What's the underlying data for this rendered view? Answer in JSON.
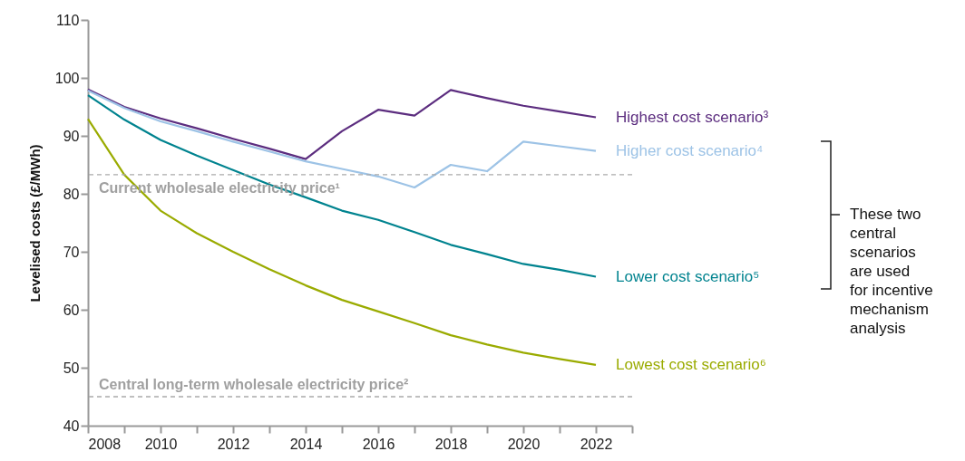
{
  "chart_data": {
    "type": "line",
    "ylabel": "Levelised costs (£/MWh)",
    "x": [
      2008,
      2009,
      2010,
      2011,
      2012,
      2013,
      2014,
      2015,
      2016,
      2017,
      2018,
      2019,
      2020,
      2021,
      2022
    ],
    "series": [
      {
        "name": "Highest cost scenario³",
        "color": "#5c2d7f",
        "values": [
          98,
          95,
          93,
          91.3,
          89.5,
          87.8,
          86,
          90.8,
          94.5,
          93.5,
          97.9,
          96.5,
          95.2,
          94.2,
          93.2
        ]
      },
      {
        "name": "Higher cost scenario⁴",
        "color": "#9dc3e6",
        "values": [
          97.8,
          94.8,
          92.5,
          90.8,
          89,
          87.3,
          85.6,
          84.3,
          83,
          81.1,
          85,
          83.9,
          89,
          88.2,
          87.4
        ]
      },
      {
        "name": "Lower cost scenario⁵",
        "color": "#00838f",
        "values": [
          97,
          92.8,
          89.3,
          86.6,
          84.1,
          81.6,
          79.4,
          77.1,
          75.5,
          73.4,
          71.2,
          69.6,
          67.9,
          66.9,
          65.7
        ]
      },
      {
        "name": "Lowest cost scenario⁶",
        "color": "#9aab00",
        "values": [
          92.9,
          83.3,
          77.1,
          73.2,
          70,
          67,
          64.2,
          61.7,
          59.7,
          57.7,
          55.6,
          54,
          52.6,
          51.5,
          50.5
        ]
      }
    ],
    "xlim": [
      2008,
      2023
    ],
    "xticks": [
      2008,
      {
        "value": 2009,
        "label": null
      },
      2010,
      {
        "value": 2011,
        "label": null
      },
      2012,
      {
        "value": 2013,
        "label": null
      },
      2014,
      {
        "value": 2015,
        "label": null
      },
      2016,
      {
        "value": 2017,
        "label": null
      },
      2018,
      {
        "value": 2019,
        "label": null
      },
      2020,
      {
        "value": 2021,
        "label": null
      },
      2022,
      {
        "value": 2023,
        "label": null
      }
    ],
    "ylim": [
      40,
      110
    ],
    "yticks": [
      40,
      50,
      60,
      70,
      80,
      90,
      100,
      110
    ],
    "ref_lines": [
      {
        "axis": "y",
        "value": 83.3,
        "label": "Current wholesale electricity price¹",
        "color": "#aaaaaa",
        "line_style": "dashed"
      },
      {
        "axis": "y",
        "value": 45,
        "label": "Central long-term wholesale electricity price²",
        "color": "#aaaaaa",
        "line_style": "dashed"
      }
    ],
    "annotations": [
      "These two\ncentral\nscenarios\nare used\nfor incentive\nmechanism\nanalysis"
    ],
    "grid": false,
    "legend": false,
    "marker": "none",
    "line_style": "solid"
  }
}
